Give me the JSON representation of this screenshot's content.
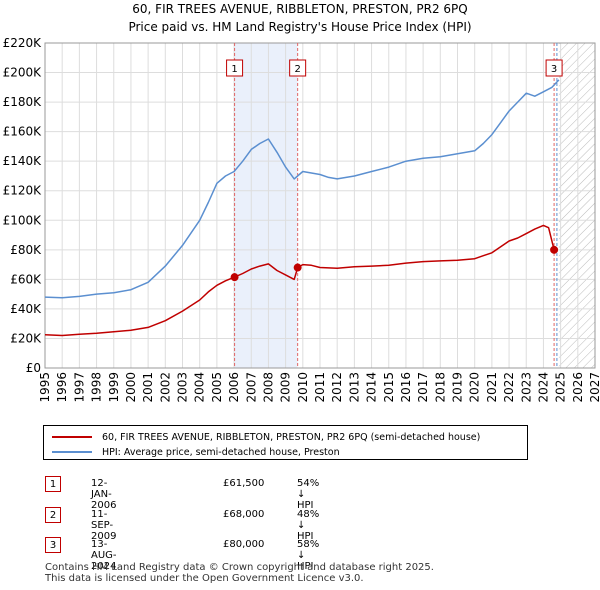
{
  "chart_data": {
    "type": "line",
    "title": "60, FIR TREES AVENUE, RIBBLETON, PRESTON, PR2 6PQ",
    "subtitle": "Price paid vs. HM Land Registry's House Price Index (HPI)",
    "x_range": [
      1995,
      2027
    ],
    "ylim": [
      0,
      220000
    ],
    "y_ticks": [
      {
        "value": 0,
        "label": "£0"
      },
      {
        "value": 20000,
        "label": "£20K"
      },
      {
        "value": 40000,
        "label": "£40K"
      },
      {
        "value": 60000,
        "label": "£60K"
      },
      {
        "value": 80000,
        "label": "£80K"
      },
      {
        "value": 100000,
        "label": "£100K"
      },
      {
        "value": 120000,
        "label": "£120K"
      },
      {
        "value": 140000,
        "label": "£140K"
      },
      {
        "value": 160000,
        "label": "£160K"
      },
      {
        "value": 180000,
        "label": "£180K"
      },
      {
        "value": 200000,
        "label": "£200K"
      },
      {
        "value": 220000,
        "label": "£220K"
      }
    ],
    "x_ticks": [
      "1995",
      "1996",
      "1997",
      "1998",
      "1999",
      "2000",
      "2001",
      "2002",
      "2003",
      "2004",
      "2005",
      "2006",
      "2007",
      "2008",
      "2009",
      "2010",
      "2011",
      "2012",
      "2013",
      "2014",
      "2015",
      "2016",
      "2017",
      "2018",
      "2019",
      "2020",
      "2021",
      "2022",
      "2023",
      "2024",
      "2025",
      "2026",
      "2027"
    ],
    "hatch_from": 2024.9,
    "shade_ranges": [
      [
        2006.03,
        2009.7
      ]
    ],
    "series": [
      {
        "name": "60, FIR TREES AVENUE, RIBBLETON, PRESTON, PR2 6PQ (semi-detached house)",
        "color": "#c00000",
        "x": [
          1995.0,
          1996.0,
          1997.0,
          1998.0,
          1999.0,
          2000.0,
          2001.0,
          2002.0,
          2003.0,
          2004.0,
          2004.5,
          2005.0,
          2005.5,
          2006.03,
          2006.5,
          2007.0,
          2007.5,
          2008.0,
          2008.5,
          2009.0,
          2009.5,
          2009.7,
          2010.0,
          2010.5,
          2011.0,
          2012.0,
          2013.0,
          2014.0,
          2015.0,
          2016.0,
          2017.0,
          2018.0,
          2019.0,
          2020.0,
          2020.5,
          2021.0,
          2021.5,
          2022.0,
          2022.5,
          2023.0,
          2023.5,
          2024.0,
          2024.3,
          2024.62
        ],
        "y": [
          22500,
          22000,
          22800,
          23500,
          24500,
          25500,
          27500,
          32000,
          38500,
          46000,
          51500,
          56000,
          59000,
          61500,
          64000,
          67000,
          69000,
          70500,
          66000,
          63000,
          60000,
          68000,
          70000,
          69500,
          68000,
          67500,
          68500,
          69000,
          69500,
          71000,
          72000,
          72500,
          73000,
          74000,
          76000,
          78000,
          82000,
          86000,
          88000,
          91000,
          94000,
          96500,
          95000,
          80000
        ]
      },
      {
        "name": "HPI: Average price, semi-detached house, Preston",
        "color": "#5b8fd0",
        "x": [
          1995.0,
          1996.0,
          1997.0,
          1998.0,
          1999.0,
          2000.0,
          2001.0,
          2002.0,
          2003.0,
          2004.0,
          2004.5,
          2005.0,
          2005.5,
          2006.0,
          2006.5,
          2007.0,
          2007.5,
          2008.0,
          2008.5,
          2009.0,
          2009.5,
          2010.0,
          2010.5,
          2011.0,
          2011.5,
          2012.0,
          2013.0,
          2014.0,
          2015.0,
          2016.0,
          2017.0,
          2018.0,
          2019.0,
          2020.0,
          2020.5,
          2021.0,
          2021.5,
          2022.0,
          2022.5,
          2023.0,
          2023.5,
          2024.0,
          2024.5,
          2024.9
        ],
        "y": [
          48000,
          47500,
          48500,
          50000,
          51000,
          53000,
          58000,
          69000,
          83000,
          100000,
          112000,
          125000,
          130000,
          133000,
          140000,
          148000,
          152000,
          155000,
          146000,
          136000,
          128000,
          133000,
          132000,
          131000,
          129000,
          128000,
          130000,
          133000,
          136000,
          140000,
          142000,
          143000,
          145000,
          147000,
          152000,
          158000,
          166000,
          174000,
          180000,
          186000,
          184000,
          187000,
          190000,
          195000
        ]
      }
    ],
    "transactions": [
      {
        "num": "1",
        "x": 2006.03,
        "price": 61500,
        "date": "12-JAN-2006",
        "price_label": "£61,500",
        "hpi": "54% ↓ HPI"
      },
      {
        "num": "2",
        "x": 2009.7,
        "price": 68000,
        "date": "11-SEP-2009",
        "price_label": "£68,000",
        "hpi": "48% ↓ HPI"
      },
      {
        "num": "3",
        "x": 2024.62,
        "price": 80000,
        "date": "13-AUG-2024",
        "price_label": "£80,000",
        "hpi": "58% ↓ HPI"
      }
    ]
  },
  "legend": {
    "property_label": "60, FIR TREES AVENUE, RIBBLETON, PRESTON, PR2 6PQ (semi-detached house)",
    "hpi_label": "HPI: Average price, semi-detached house, Preston",
    "property_color": "#c00000",
    "hpi_color": "#5b8fd0"
  },
  "footer": {
    "line1": "Contains HM Land Registry data © Crown copyright and database right 2025.",
    "line2": "This data is licensed under the Open Government Licence v3.0."
  }
}
